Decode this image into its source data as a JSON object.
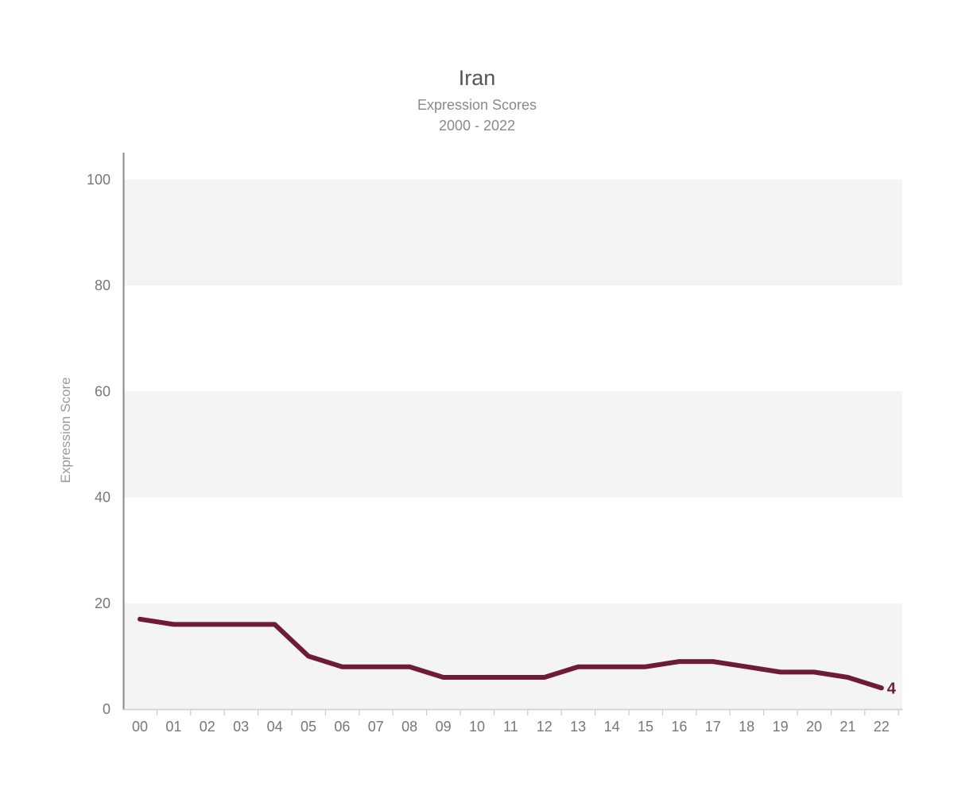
{
  "chart_data": {
    "type": "line",
    "title": "Iran",
    "subtitle": "Expression Scores",
    "subtitle2": "2000 - 2022",
    "xlabel": "",
    "ylabel": "Expression Score",
    "x": [
      "00",
      "01",
      "02",
      "03",
      "04",
      "05",
      "06",
      "07",
      "08",
      "09",
      "10",
      "11",
      "12",
      "13",
      "14",
      "15",
      "16",
      "17",
      "18",
      "19",
      "20",
      "21",
      "22"
    ],
    "series": [
      {
        "values": [
          17,
          16,
          16,
          16,
          16,
          10,
          8,
          8,
          8,
          6,
          6,
          6,
          6,
          8,
          8,
          8,
          9,
          9,
          8,
          7,
          7,
          6,
          4
        ],
        "color": "#6e1c33"
      }
    ],
    "end_label": "4",
    "ylim": [
      0,
      100
    ],
    "yticks": [
      0,
      20,
      40,
      60,
      80,
      100
    ],
    "band_color": "#f4f4f4",
    "grid": false,
    "legend": "none"
  }
}
